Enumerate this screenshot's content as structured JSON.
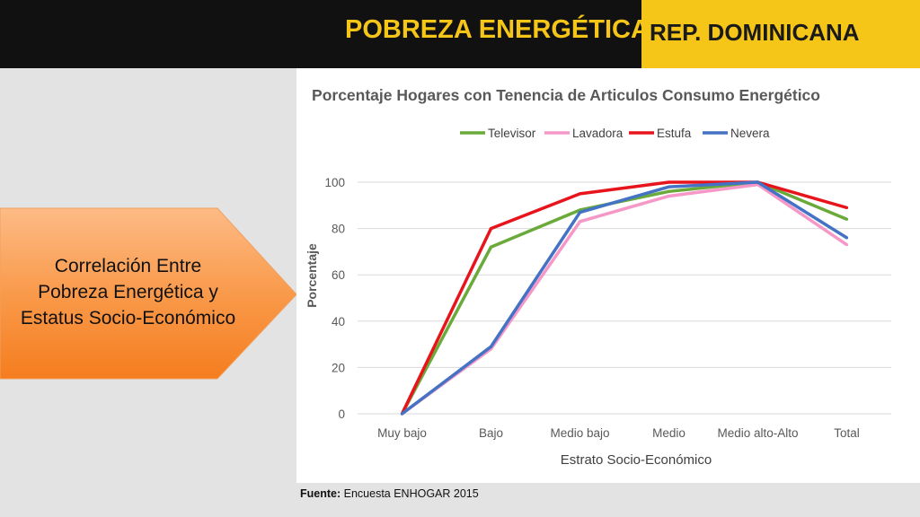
{
  "header": {
    "title": "POBREZA ENERGÉTICA",
    "country": "REP. DOMINICANA"
  },
  "callout": {
    "lines": [
      "Correlación Entre",
      "Pobreza Energética y",
      "Estatus Socio-Económico"
    ]
  },
  "source": {
    "label": "Fuente:",
    "text": "Encuesta ENHOGAR 2015"
  },
  "colors": {
    "header_bg": "#111111",
    "accent_yellow": "#f5c518",
    "arrow_orange": "#f7923a"
  },
  "chart_data": {
    "type": "line",
    "title": "Porcentaje Hogares con  Tenencia de Articulos  Consumo Energético",
    "xlabel": "Estrato  Socio-Económico",
    "ylabel": "Porcentaje",
    "categories": [
      "Muy bajo",
      "Bajo",
      "Medio bajo",
      "Medio",
      "Medio alto-Alto",
      "Total"
    ],
    "ylim": [
      0,
      100
    ],
    "yticks": [
      0,
      20,
      40,
      60,
      80,
      100
    ],
    "grid": true,
    "legend_position": "top",
    "series": [
      {
        "name": "Televisor",
        "color": "#6aaa3a",
        "values": [
          0,
          72,
          88,
          96,
          100,
          84
        ]
      },
      {
        "name": "Lavadora",
        "color": "#f598c8",
        "values": [
          0,
          28,
          83,
          94,
          99,
          73
        ]
      },
      {
        "name": "Estufa",
        "color": "#e8141b",
        "values": [
          0,
          80,
          95,
          100,
          100,
          89
        ]
      },
      {
        "name": "Nevera",
        "color": "#4472c4",
        "values": [
          0,
          29,
          87,
          98,
          100,
          76
        ]
      }
    ]
  }
}
